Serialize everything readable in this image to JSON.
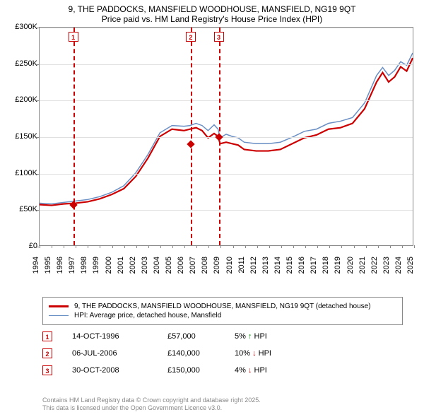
{
  "title": {
    "line1": "9, THE PADDOCKS, MANSFIELD WOODHOUSE, MANSFIELD, NG19 9QT",
    "line2": "Price paid vs. HM Land Registry's House Price Index (HPI)"
  },
  "chart": {
    "type": "line",
    "background_color": "#ffffff",
    "grid_color": "#e0e0e0",
    "border_color": "#888888",
    "ylim": [
      0,
      300000
    ],
    "ytick_step": 50000,
    "y_labels": [
      "£0",
      "£50K",
      "£100K",
      "£150K",
      "£200K",
      "£250K",
      "£300K"
    ],
    "x_years": [
      1994,
      1995,
      1996,
      1997,
      1998,
      1999,
      2000,
      2001,
      2002,
      2003,
      2004,
      2005,
      2006,
      2007,
      2008,
      2009,
      2010,
      2011,
      2012,
      2013,
      2014,
      2015,
      2016,
      2017,
      2018,
      2019,
      2020,
      2021,
      2022,
      2023,
      2024,
      2025
    ],
    "series": [
      {
        "name": "price_paid",
        "color": "#cc0000",
        "width": 2.2,
        "data": [
          [
            1994,
            56000
          ],
          [
            1995,
            55000
          ],
          [
            1996,
            57000
          ],
          [
            1997,
            58000
          ],
          [
            1998,
            60000
          ],
          [
            1999,
            64000
          ],
          [
            2000,
            70000
          ],
          [
            2001,
            78000
          ],
          [
            2002,
            95000
          ],
          [
            2003,
            120000
          ],
          [
            2004,
            150000
          ],
          [
            2005,
            160000
          ],
          [
            2006,
            158000
          ],
          [
            2006.5,
            160000
          ],
          [
            2007,
            162000
          ],
          [
            2007.5,
            158000
          ],
          [
            2008,
            148000
          ],
          [
            2008.5,
            154000
          ],
          [
            2008.83,
            150000
          ],
          [
            2009,
            140000
          ],
          [
            2009.5,
            142000
          ],
          [
            2010,
            140000
          ],
          [
            2010.5,
            138000
          ],
          [
            2011,
            132000
          ],
          [
            2012,
            130000
          ],
          [
            2013,
            130000
          ],
          [
            2014,
            132000
          ],
          [
            2015,
            140000
          ],
          [
            2016,
            148000
          ],
          [
            2017,
            152000
          ],
          [
            2018,
            160000
          ],
          [
            2019,
            162000
          ],
          [
            2020,
            168000
          ],
          [
            2021,
            188000
          ],
          [
            2022,
            225000
          ],
          [
            2022.5,
            238000
          ],
          [
            2023,
            225000
          ],
          [
            2023.5,
            232000
          ],
          [
            2024,
            246000
          ],
          [
            2024.5,
            240000
          ],
          [
            2025,
            258000
          ]
        ]
      },
      {
        "name": "hpi",
        "color": "#6a8fc4",
        "width": 1.5,
        "data": [
          [
            1994,
            58000
          ],
          [
            1995,
            57000
          ],
          [
            1996,
            59000
          ],
          [
            1997,
            61000
          ],
          [
            1998,
            63000
          ],
          [
            1999,
            67000
          ],
          [
            2000,
            73000
          ],
          [
            2001,
            82000
          ],
          [
            2002,
            100000
          ],
          [
            2003,
            125000
          ],
          [
            2004,
            155000
          ],
          [
            2005,
            165000
          ],
          [
            2006,
            164000
          ],
          [
            2006.5,
            165000
          ],
          [
            2007,
            168000
          ],
          [
            2007.5,
            165000
          ],
          [
            2008,
            158000
          ],
          [
            2008.5,
            166000
          ],
          [
            2008.83,
            160000
          ],
          [
            2009,
            148000
          ],
          [
            2009.5,
            153000
          ],
          [
            2010,
            150000
          ],
          [
            2010.5,
            148000
          ],
          [
            2011,
            142000
          ],
          [
            2012,
            140000
          ],
          [
            2013,
            140000
          ],
          [
            2014,
            142000
          ],
          [
            2015,
            149000
          ],
          [
            2016,
            157000
          ],
          [
            2017,
            160000
          ],
          [
            2018,
            168000
          ],
          [
            2019,
            171000
          ],
          [
            2020,
            176000
          ],
          [
            2021,
            196000
          ],
          [
            2022,
            234000
          ],
          [
            2022.5,
            245000
          ],
          [
            2023,
            234000
          ],
          [
            2023.5,
            241000
          ],
          [
            2024,
            253000
          ],
          [
            2024.5,
            248000
          ],
          [
            2025,
            265000
          ]
        ]
      }
    ],
    "markers": [
      {
        "num": "1",
        "year": 1996.79,
        "price": 57000
      },
      {
        "num": "2",
        "year": 2006.51,
        "price": 140000
      },
      {
        "num": "3",
        "year": 2008.83,
        "price": 150000
      }
    ],
    "marker_line_color": "#cc0000",
    "marker_box_color": "#cc0000",
    "diamond_color": "#cc0000"
  },
  "legend": {
    "items": [
      {
        "color": "#cc0000",
        "width": 2.2,
        "label": "9, THE PADDOCKS, MANSFIELD WOODHOUSE, MANSFIELD, NG19 9QT (detached house)"
      },
      {
        "color": "#6a8fc4",
        "width": 1.5,
        "label": "HPI: Average price, detached house, Mansfield"
      }
    ]
  },
  "transactions": [
    {
      "num": "1",
      "date": "14-OCT-1996",
      "price": "£57,000",
      "delta": "5%",
      "arrow": "↑",
      "arrow_color": "#009900",
      "suffix": "HPI"
    },
    {
      "num": "2",
      "date": "06-JUL-2006",
      "price": "£140,000",
      "delta": "10%",
      "arrow": "↓",
      "arrow_color": "#cc0000",
      "suffix": "HPI"
    },
    {
      "num": "3",
      "date": "30-OCT-2008",
      "price": "£150,000",
      "delta": "4%",
      "arrow": "↓",
      "arrow_color": "#cc0000",
      "suffix": "HPI"
    }
  ],
  "footer": {
    "line1": "Contains HM Land Registry data © Crown copyright and database right 2025.",
    "line2": "This data is licensed under the Open Government Licence v3.0."
  }
}
